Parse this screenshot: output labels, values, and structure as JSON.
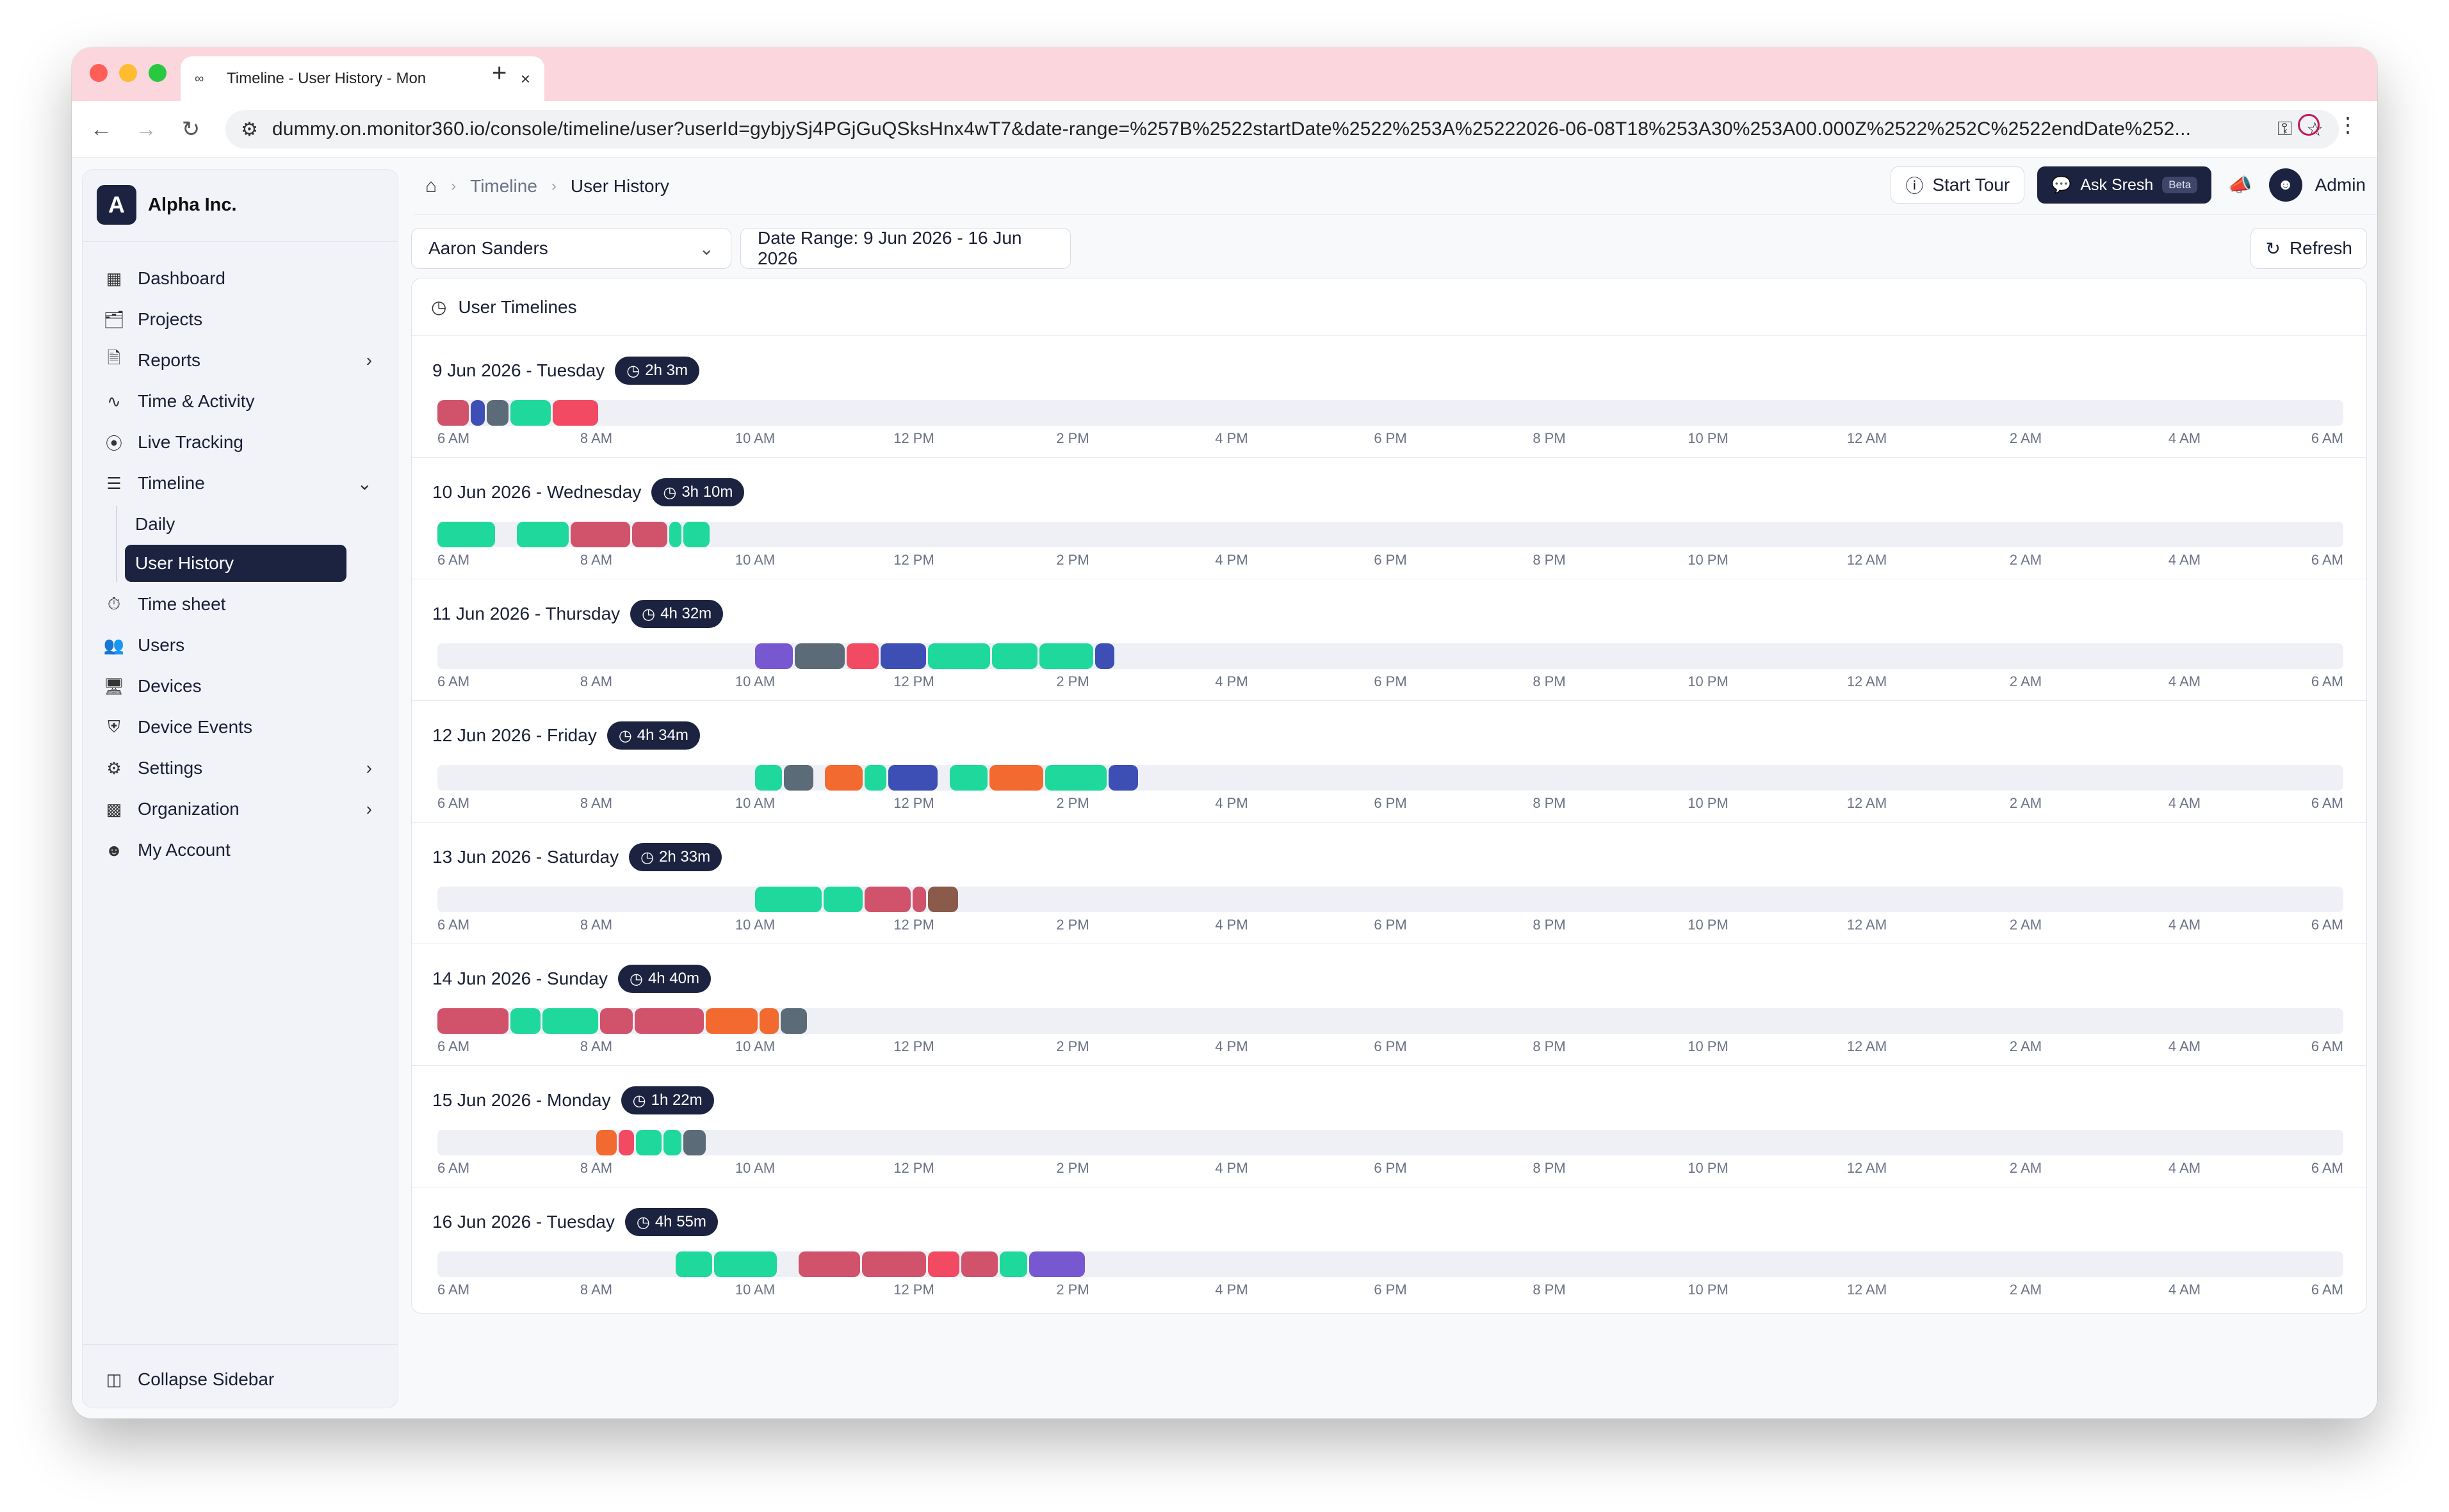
{
  "browser": {
    "tab_title": "Timeline - User History - Mon",
    "url": "dummy.on.monitor360.io/console/timeline/user?userId=gybjySj4PGjGuQSksHnx4wT7&date-range=%257B%2522startDate%2522%253A%25222026-06-08T18%253A30%253A00.000Z%2522%252C%2522endDate%252..."
  },
  "org": {
    "initial": "A",
    "name": "Alpha Inc."
  },
  "sidebar": {
    "items": [
      {
        "label": "Dashboard",
        "icon": "dashboard-icon"
      },
      {
        "label": "Projects",
        "icon": "projects-icon"
      },
      {
        "label": "Reports",
        "icon": "reports-icon"
      },
      {
        "label": "Time & Activity",
        "icon": "activity-icon"
      },
      {
        "label": "Live Tracking",
        "icon": "live-icon"
      },
      {
        "label": "Timeline",
        "icon": "timeline-icon"
      },
      {
        "label": "Time sheet",
        "icon": "timer-icon"
      },
      {
        "label": "Users",
        "icon": "users-icon"
      },
      {
        "label": "Devices",
        "icon": "devices-icon"
      },
      {
        "label": "Device Events",
        "icon": "shield-icon"
      },
      {
        "label": "Settings",
        "icon": "gear-icon"
      },
      {
        "label": "Organization",
        "icon": "building-icon"
      },
      {
        "label": "My Account",
        "icon": "user-icon"
      }
    ],
    "timeline_sub": {
      "daily": "Daily",
      "user_history": "User History"
    },
    "collapse_label": "Collapse Sidebar"
  },
  "breadcrumb": {
    "parent": "Timeline",
    "current": "User History"
  },
  "topbar": {
    "start_tour": "Start Tour",
    "ask_sresh": "Ask Sresh",
    "beta": "Beta",
    "user": "Admin"
  },
  "filters": {
    "user": "Aaron Sanders",
    "date_range": "Date Range: 9 Jun 2026 - 16 Jun 2026",
    "refresh": "Refresh"
  },
  "timelines": {
    "title": "User Timelines",
    "tick_labels": [
      "6 AM",
      "8 AM",
      "10 AM",
      "12 PM",
      "2 PM",
      "4 PM",
      "6 PM",
      "8 PM",
      "10 PM",
      "12 AM",
      "2 AM",
      "4 AM",
      "6 AM"
    ],
    "colors": {
      "green": "#1fd89b",
      "red": "#d0536b",
      "pink": "#f24a63",
      "blue": "#3d4fb5",
      "slate": "#5b6b78",
      "purple": "#7758d1",
      "orange": "#f26a2f",
      "brown": "#8a5a4a"
    },
    "days": [
      {
        "label": "9 Jun 2026 - Tuesday",
        "duration": "2h 3m",
        "segments": [
          {
            "s": 6.0,
            "e": 6.42,
            "c": "red"
          },
          {
            "s": 6.42,
            "e": 6.62,
            "c": "blue"
          },
          {
            "s": 6.62,
            "e": 6.92,
            "c": "slate"
          },
          {
            "s": 6.92,
            "e": 7.45,
            "c": "green"
          },
          {
            "s": 7.45,
            "e": 8.05,
            "c": "pink"
          }
        ]
      },
      {
        "label": "10 Jun 2026 - Wednesday",
        "duration": "3h 10m",
        "segments": [
          {
            "s": 6.0,
            "e": 6.75,
            "c": "green"
          },
          {
            "s": 7.0,
            "e": 7.68,
            "c": "green"
          },
          {
            "s": 7.68,
            "e": 8.45,
            "c": "red"
          },
          {
            "s": 8.45,
            "e": 8.92,
            "c": "red"
          },
          {
            "s": 8.92,
            "e": 9.1,
            "c": "green"
          },
          {
            "s": 9.1,
            "e": 9.45,
            "c": "green"
          }
        ]
      },
      {
        "label": "11 Jun 2026 - Thursday",
        "duration": "4h 32m",
        "segments": [
          {
            "s": 10.0,
            "e": 10.5,
            "c": "purple"
          },
          {
            "s": 10.5,
            "e": 11.15,
            "c": "slate"
          },
          {
            "s": 11.15,
            "e": 11.58,
            "c": "pink"
          },
          {
            "s": 11.58,
            "e": 12.18,
            "c": "blue"
          },
          {
            "s": 12.18,
            "e": 12.98,
            "c": "green"
          },
          {
            "s": 12.98,
            "e": 13.58,
            "c": "green"
          },
          {
            "s": 13.58,
            "e": 14.28,
            "c": "green"
          },
          {
            "s": 14.28,
            "e": 14.55,
            "c": "blue"
          }
        ]
      },
      {
        "label": "12 Jun 2026 - Friday",
        "duration": "4h 34m",
        "segments": [
          {
            "s": 10.0,
            "e": 10.36,
            "c": "green"
          },
          {
            "s": 10.36,
            "e": 10.76,
            "c": "slate"
          },
          {
            "s": 10.88,
            "e": 11.38,
            "c": "orange"
          },
          {
            "s": 11.38,
            "e": 11.68,
            "c": "green"
          },
          {
            "s": 11.68,
            "e": 12.32,
            "c": "blue"
          },
          {
            "s": 12.45,
            "e": 12.95,
            "c": "green"
          },
          {
            "s": 12.95,
            "e": 13.65,
            "c": "orange"
          },
          {
            "s": 13.65,
            "e": 14.45,
            "c": "green"
          },
          {
            "s": 14.45,
            "e": 14.85,
            "c": "blue"
          }
        ]
      },
      {
        "label": "13 Jun 2026 - Saturday",
        "duration": "2h 33m",
        "segments": [
          {
            "s": 10.0,
            "e": 10.86,
            "c": "green"
          },
          {
            "s": 10.86,
            "e": 11.38,
            "c": "green"
          },
          {
            "s": 11.38,
            "e": 11.98,
            "c": "red"
          },
          {
            "s": 11.98,
            "e": 12.18,
            "c": "red"
          },
          {
            "s": 12.18,
            "e": 12.58,
            "c": "brown"
          }
        ]
      },
      {
        "label": "14 Jun 2026 - Sunday",
        "duration": "4h 40m",
        "segments": [
          {
            "s": 6.0,
            "e": 6.92,
            "c": "red"
          },
          {
            "s": 6.92,
            "e": 7.32,
            "c": "green"
          },
          {
            "s": 7.32,
            "e": 8.05,
            "c": "green"
          },
          {
            "s": 8.05,
            "e": 8.48,
            "c": "red"
          },
          {
            "s": 8.48,
            "e": 9.38,
            "c": "red"
          },
          {
            "s": 9.38,
            "e": 10.06,
            "c": "orange"
          },
          {
            "s": 10.06,
            "e": 10.32,
            "c": "orange"
          },
          {
            "s": 10.32,
            "e": 10.68,
            "c": "slate"
          }
        ]
      },
      {
        "label": "15 Jun 2026 - Monday",
        "duration": "1h 22m",
        "segments": [
          {
            "s": 8.0,
            "e": 8.28,
            "c": "orange"
          },
          {
            "s": 8.28,
            "e": 8.5,
            "c": "pink"
          },
          {
            "s": 8.5,
            "e": 8.85,
            "c": "green"
          },
          {
            "s": 8.85,
            "e": 9.1,
            "c": "green"
          },
          {
            "s": 9.1,
            "e": 9.4,
            "c": "slate"
          }
        ]
      },
      {
        "label": "16 Jun 2026 - Tuesday",
        "duration": "4h 55m",
        "segments": [
          {
            "s": 9.0,
            "e": 9.48,
            "c": "green"
          },
          {
            "s": 9.48,
            "e": 10.3,
            "c": "green"
          },
          {
            "s": 10.55,
            "e": 11.35,
            "c": "red"
          },
          {
            "s": 11.35,
            "e": 12.18,
            "c": "red"
          },
          {
            "s": 12.18,
            "e": 12.6,
            "c": "pink"
          },
          {
            "s": 12.6,
            "e": 13.08,
            "c": "red"
          },
          {
            "s": 13.08,
            "e": 13.45,
            "c": "green"
          },
          {
            "s": 13.45,
            "e": 14.18,
            "c": "purple"
          }
        ]
      }
    ]
  }
}
